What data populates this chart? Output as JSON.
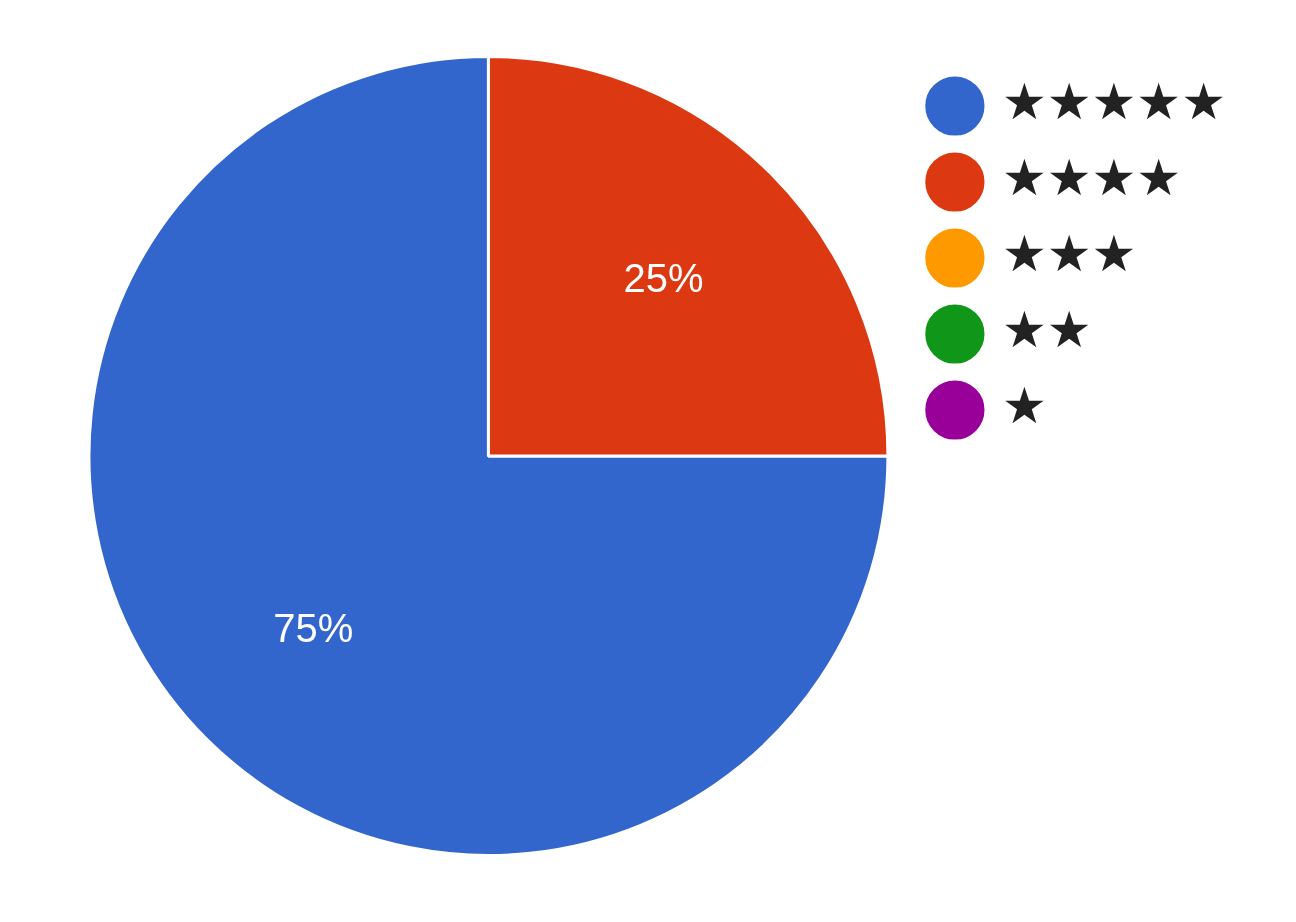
{
  "chart_data": {
    "type": "pie",
    "categories": [
      "★★★★★",
      "★★★★",
      "★★★",
      "★★",
      "★"
    ],
    "values": [
      75,
      25,
      0,
      0,
      0
    ],
    "colors": [
      "#3366cc",
      "#dc3912",
      "#ff9900",
      "#109618",
      "#990099"
    ],
    "value_labels": [
      "75%",
      "25%",
      null,
      null,
      null
    ],
    "legend": "top right"
  }
}
